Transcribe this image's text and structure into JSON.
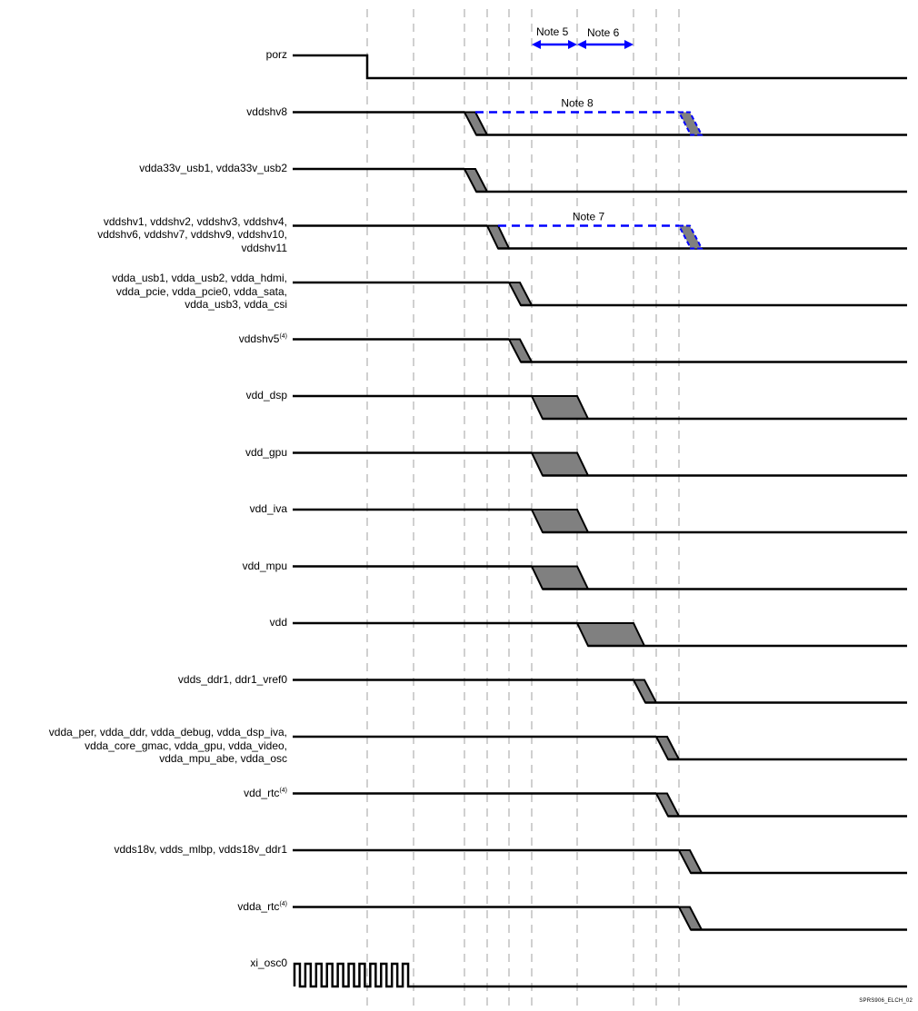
{
  "footer_id": "SPRS906_ELCH_02",
  "colors": {
    "signal": "#000000",
    "ramp_fill": "#808080",
    "note": "#0000ff",
    "guide": "#a0a0a0"
  },
  "notes": {
    "note5": "Note 5",
    "note6": "Note 6",
    "note7": "Note 7",
    "note8": "Note 8"
  },
  "signals": [
    {
      "label": [
        "porz"
      ],
      "type": "step",
      "event": 0
    },
    {
      "label": [
        "vddshv8"
      ],
      "type": "ramp",
      "from": 3,
      "to": 4,
      "dashed_to": [
        9,
        "note8"
      ]
    },
    {
      "label": [
        "vdda33v_usb1, vdda33v_usb2"
      ],
      "type": "ramp",
      "from": 3,
      "to": 4
    },
    {
      "label": [
        "vddshv1, vddshv2, vddshv3, vddshv4,",
        "vddshv6, vddshv7, vddshv9, vddshv10,",
        "vddshv11"
      ],
      "type": "ramp",
      "from": 4,
      "to": 5,
      "dashed_to": [
        9,
        "note7"
      ]
    },
    {
      "label": [
        "vdda_usb1, vdda_usb2, vdda_hdmi,",
        "vdda_pcie, vdda_pcie0, vdda_sata,",
        "vdda_usb3, vdda_csi"
      ],
      "type": "ramp",
      "from": 5,
      "to": 6
    },
    {
      "label": [
        "vddshv5"
      ],
      "sup": "(4)",
      "type": "ramp",
      "from": 5,
      "to": 6
    },
    {
      "label": [
        "vdd_dsp"
      ],
      "type": "wide",
      "from": 6,
      "to": 7
    },
    {
      "label": [
        "vdd_gpu"
      ],
      "type": "wide",
      "from": 6,
      "to": 7
    },
    {
      "label": [
        "vdd_iva"
      ],
      "type": "wide",
      "from": 6,
      "to": 7
    },
    {
      "label": [
        "vdd_mpu"
      ],
      "type": "wide",
      "from": 6,
      "to": 7
    },
    {
      "label": [
        "vdd"
      ],
      "type": "wide",
      "from": 7,
      "to": 8
    },
    {
      "label": [
        "vdds_ddr1, ddr1_vref0"
      ],
      "type": "ramp",
      "from": 8,
      "to": 9
    },
    {
      "label": [
        "vdda_per, vdda_ddr, vdda_debug, vdda_dsp_iva,",
        "vdda_core_gmac, vdda_gpu, vdda_video,",
        "vdda_mpu_abe, vdda_osc"
      ],
      "type": "ramp",
      "from": 9,
      "to": 10
    },
    {
      "label": [
        "vdd_rtc"
      ],
      "sup": "(4)",
      "type": "ramp",
      "from": 9,
      "to": 10
    },
    {
      "label": [
        "vdds18v, vdds_mlbp, vdds18v_ddr1"
      ],
      "type": "ramp",
      "from": 10,
      "to": 11
    },
    {
      "label": [
        "vdda_rtc"
      ],
      "sup": "(4)",
      "type": "ramp",
      "from": 10,
      "to": 11
    },
    {
      "label": [
        "xi_osc0"
      ],
      "type": "clock",
      "event": 1,
      "pulses": 11
    }
  ]
}
